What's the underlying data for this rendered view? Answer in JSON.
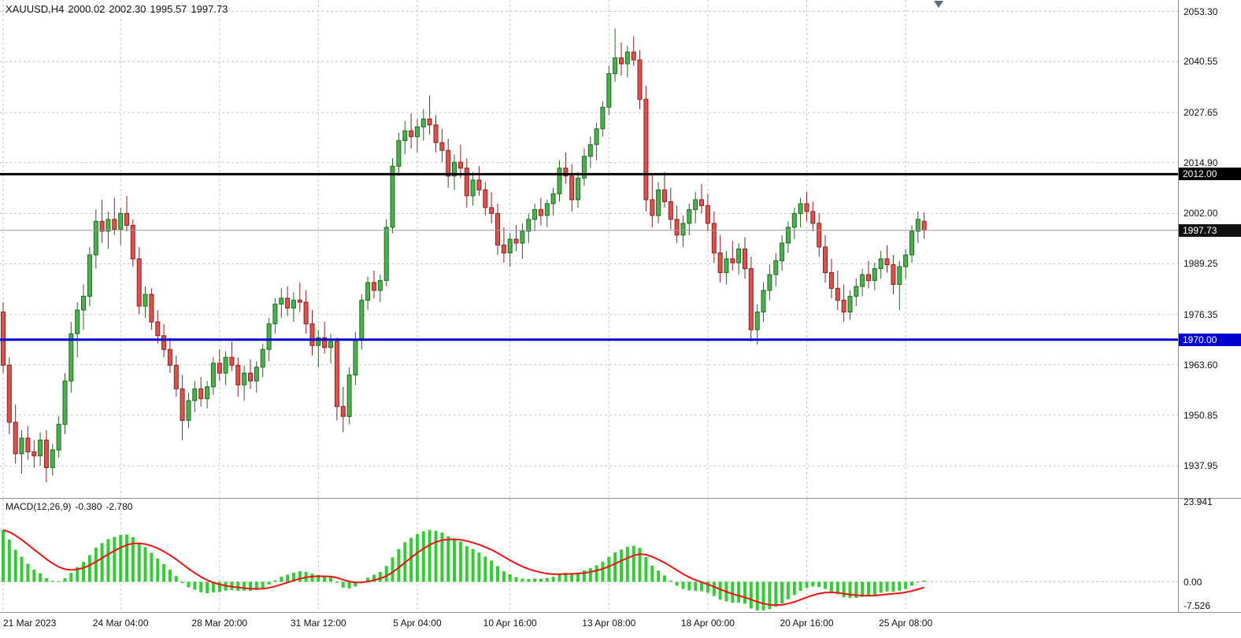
{
  "header": {
    "symbol": "XAUUSD,H4",
    "open": "2000.02",
    "high": "2002.30",
    "low": "1995.57",
    "close": "1997.73"
  },
  "colors": {
    "background": "#ffffff",
    "grid": "#c6c6c6",
    "separator": "#8c8c8c",
    "axis_text": "#111111",
    "up_body": "#4caf50",
    "up_border": "#1d6b1d",
    "down_body": "#d9534f",
    "down_border": "#8e1f1c",
    "macd_hist": "#32cd32",
    "macd_signal": "#ef1010",
    "bid_line": "#9a9a9a",
    "bid_badge_bg": "#111111",
    "badge_text": "#ffffff"
  },
  "chart_data": {
    "type": "candlestick",
    "symbol": "XAUUSD",
    "timeframe": "H4",
    "price_axis": {
      "min": 1930.0,
      "max": 2056.2,
      "ticks": [
        "2053.30",
        "2040.55",
        "2027.65",
        "2014.90",
        "2002.00",
        "1989.25",
        "1976.35",
        "1963.60",
        "1950.85",
        "1937.95"
      ]
    },
    "x_axis": {
      "labels": [
        {
          "text": "21 Mar 2023",
          "bar": 0
        },
        {
          "text": "24 Mar 04:00",
          "bar": 19
        },
        {
          "text": "28 Mar 20:00",
          "bar": 35
        },
        {
          "text": "31 Mar 12:00",
          "bar": 51
        },
        {
          "text": "5 Apr 04:00",
          "bar": 67
        },
        {
          "text": "10 Apr 16:00",
          "bar": 82
        },
        {
          "text": "13 Apr 08:00",
          "bar": 98
        },
        {
          "text": "18 Apr 00:00",
          "bar": 114
        },
        {
          "text": "20 Apr 16:00",
          "bar": 130
        },
        {
          "text": "25 Apr 08:00",
          "bar": 146
        }
      ]
    },
    "hlines": [
      {
        "name": "resistance-line",
        "price": 2012.0,
        "label": "2012.00",
        "color": "#000000",
        "width": 3
      },
      {
        "name": "support-line",
        "price": 1970.0,
        "label": "1970.00",
        "color": "#0000d2",
        "width": 3
      }
    ],
    "current_price": {
      "price": 1997.73,
      "label": "1997.73"
    },
    "candles": [
      [
        1977.0,
        1979.5,
        1961.5,
        1963.5
      ],
      [
        1963.5,
        1965.5,
        1946.0,
        1949.0
      ],
      [
        1949.0,
        1953.5,
        1938.5,
        1941.0
      ],
      [
        1941.0,
        1947.0,
        1936.0,
        1945.0
      ],
      [
        1945.0,
        1948.0,
        1939.5,
        1941.5
      ],
      [
        1941.5,
        1944.5,
        1937.5,
        1940.5
      ],
      [
        1940.5,
        1946.5,
        1938.0,
        1944.5
      ],
      [
        1944.5,
        1947.0,
        1933.8,
        1937.5
      ],
      [
        1937.5,
        1943.5,
        1935.5,
        1942.0
      ],
      [
        1942.0,
        1950.5,
        1940.0,
        1948.5
      ],
      [
        1948.5,
        1961.5,
        1946.0,
        1959.5
      ],
      [
        1959.5,
        1974.5,
        1956.5,
        1971.5
      ],
      [
        1971.5,
        1979.5,
        1965.5,
        1977.5
      ],
      [
        1977.5,
        1984.0,
        1972.5,
        1981.0
      ],
      [
        1981.0,
        1993.5,
        1978.5,
        1991.5
      ],
      [
        1991.5,
        2003.0,
        1988.0,
        2000.0
      ],
      [
        2000.0,
        2005.5,
        1994.5,
        1997.5
      ],
      [
        1997.5,
        2002.5,
        1993.0,
        2000.5
      ],
      [
        2000.5,
        2006.0,
        1996.5,
        1998.0
      ],
      [
        1998.0,
        2003.5,
        1994.0,
        2002.0
      ],
      [
        2002.0,
        2006.5,
        1997.5,
        1999.0
      ],
      [
        1999.0,
        2000.5,
        1988.5,
        1990.5
      ],
      [
        1990.5,
        1993.5,
        1976.5,
        1978.5
      ],
      [
        1978.5,
        1983.5,
        1975.5,
        1981.5
      ],
      [
        1981.5,
        1983.0,
        1972.5,
        1974.5
      ],
      [
        1974.5,
        1977.5,
        1969.0,
        1971.0
      ],
      [
        1971.0,
        1974.0,
        1965.5,
        1967.5
      ],
      [
        1967.5,
        1970.5,
        1961.5,
        1963.5
      ],
      [
        1963.5,
        1966.0,
        1955.5,
        1957.5
      ],
      [
        1957.5,
        1961.0,
        1944.5,
        1949.5
      ],
      [
        1949.5,
        1956.5,
        1947.5,
        1954.5
      ],
      [
        1954.5,
        1959.5,
        1951.5,
        1957.5
      ],
      [
        1957.5,
        1960.5,
        1953.0,
        1955.0
      ],
      [
        1955.0,
        1959.5,
        1952.5,
        1958.0
      ],
      [
        1958.0,
        1965.5,
        1956.0,
        1964.0
      ],
      [
        1964.0,
        1967.5,
        1959.5,
        1961.5
      ],
      [
        1961.5,
        1967.0,
        1958.5,
        1965.5
      ],
      [
        1965.5,
        1969.5,
        1962.0,
        1963.5
      ],
      [
        1963.5,
        1965.5,
        1955.5,
        1958.5
      ],
      [
        1958.5,
        1963.5,
        1954.5,
        1961.5
      ],
      [
        1961.5,
        1965.0,
        1957.5,
        1959.5
      ],
      [
        1959.5,
        1964.5,
        1956.5,
        1963.0
      ],
      [
        1963.0,
        1969.0,
        1960.5,
        1967.5
      ],
      [
        1967.5,
        1975.5,
        1964.5,
        1974.0
      ],
      [
        1974.0,
        1980.5,
        1971.5,
        1979.0
      ],
      [
        1979.0,
        1983.0,
        1975.5,
        1980.5
      ],
      [
        1980.5,
        1983.5,
        1976.0,
        1978.0
      ],
      [
        1978.0,
        1982.0,
        1974.5,
        1980.0
      ],
      [
        1980.0,
        1984.5,
        1977.0,
        1979.5
      ],
      [
        1979.5,
        1982.5,
        1971.5,
        1974.0
      ],
      [
        1974.0,
        1977.5,
        1966.0,
        1968.5
      ],
      [
        1968.5,
        1972.5,
        1963.0,
        1970.5
      ],
      [
        1970.5,
        1974.5,
        1966.5,
        1968.0
      ],
      [
        1968.0,
        1971.5,
        1964.0,
        1969.5
      ],
      [
        1969.5,
        1970.5,
        1949.5,
        1953.0
      ],
      [
        1953.0,
        1958.0,
        1946.5,
        1950.5
      ],
      [
        1950.5,
        1963.0,
        1948.5,
        1961.0
      ],
      [
        1961.0,
        1972.0,
        1958.5,
        1970.0
      ],
      [
        1970.0,
        1981.5,
        1967.5,
        1980.0
      ],
      [
        1980.0,
        1986.0,
        1977.5,
        1984.5
      ],
      [
        1984.5,
        1987.5,
        1980.5,
        1982.5
      ],
      [
        1982.5,
        1986.5,
        1979.5,
        1985.0
      ],
      [
        1985.0,
        2000.5,
        1983.5,
        1998.5
      ],
      [
        1998.5,
        2016.0,
        1997.0,
        2014.0
      ],
      [
        2014.0,
        2022.5,
        2011.5,
        2020.5
      ],
      [
        2020.5,
        2025.5,
        2017.0,
        2023.0
      ],
      [
        2023.0,
        2027.5,
        2018.5,
        2021.5
      ],
      [
        2021.5,
        2026.0,
        2017.5,
        2024.0
      ],
      [
        2024.0,
        2028.5,
        2020.5,
        2026.0
      ],
      [
        2026.0,
        2032.0,
        2022.0,
        2024.5
      ],
      [
        2024.5,
        2027.0,
        2017.5,
        2020.0
      ],
      [
        2020.0,
        2023.5,
        2015.0,
        2018.0
      ],
      [
        2018.0,
        2021.0,
        2008.5,
        2011.5
      ],
      [
        2011.5,
        2017.0,
        2008.0,
        2015.0
      ],
      [
        2015.0,
        2019.5,
        2011.0,
        2013.5
      ],
      [
        2013.5,
        2016.0,
        2003.5,
        2006.5
      ],
      [
        2006.5,
        2012.5,
        2004.0,
        2010.5
      ],
      [
        2010.5,
        2014.0,
        2006.5,
        2008.0
      ],
      [
        2008.0,
        2010.0,
        2001.5,
        2003.5
      ],
      [
        2003.5,
        2007.5,
        1999.5,
        2002.0
      ],
      [
        2002.0,
        2004.5,
        1991.5,
        1994.0
      ],
      [
        1994.0,
        1998.5,
        1989.5,
        1992.0
      ],
      [
        1992.0,
        1997.0,
        1988.5,
        1995.5
      ],
      [
        1995.5,
        1999.0,
        1992.5,
        1994.5
      ],
      [
        1994.5,
        1999.5,
        1990.5,
        1997.5
      ],
      [
        1997.5,
        2002.0,
        1994.5,
        2000.5
      ],
      [
        2000.5,
        2004.5,
        1997.5,
        2003.0
      ],
      [
        2003.0,
        2006.0,
        1999.0,
        2001.5
      ],
      [
        2001.5,
        2005.5,
        1998.5,
        2004.5
      ],
      [
        2004.5,
        2008.5,
        2001.5,
        2007.0
      ],
      [
        2007.0,
        2015.5,
        2005.0,
        2013.5
      ],
      [
        2013.5,
        2017.5,
        2009.5,
        2011.5
      ],
      [
        2011.5,
        2014.5,
        2002.5,
        2005.5
      ],
      [
        2005.5,
        2012.5,
        2003.5,
        2011.0
      ],
      [
        2011.0,
        2018.5,
        2009.0,
        2016.5
      ],
      [
        2016.5,
        2021.5,
        2013.5,
        2019.5
      ],
      [
        2019.5,
        2025.0,
        2015.5,
        2023.5
      ],
      [
        2023.5,
        2030.5,
        2021.5,
        2029.0
      ],
      [
        2029.0,
        2039.5,
        2027.0,
        2037.5
      ],
      [
        2037.5,
        2049.0,
        2035.5,
        2041.5
      ],
      [
        2041.5,
        2045.5,
        2037.0,
        2040.0
      ],
      [
        2040.0,
        2044.5,
        2036.5,
        2043.0
      ],
      [
        2043.0,
        2047.0,
        2039.5,
        2041.0
      ],
      [
        2041.0,
        2043.5,
        2028.5,
        2031.0
      ],
      [
        2031.0,
        2034.5,
        2002.5,
        2005.5
      ],
      [
        2005.5,
        2012.0,
        1998.5,
        2001.5
      ],
      [
        2001.5,
        2010.0,
        1999.5,
        2008.0
      ],
      [
        2008.0,
        2012.5,
        2003.5,
        2005.0
      ],
      [
        2005.0,
        2008.5,
        1998.0,
        2000.5
      ],
      [
        2000.5,
        2004.0,
        1994.5,
        1996.5
      ],
      [
        1996.5,
        2001.5,
        1993.5,
        1999.5
      ],
      [
        1999.5,
        2004.5,
        1996.5,
        2003.0
      ],
      [
        2003.0,
        2007.5,
        1999.5,
        2005.5
      ],
      [
        2005.5,
        2009.5,
        2002.0,
        2004.0
      ],
      [
        2004.0,
        2007.0,
        1997.5,
        1999.5
      ],
      [
        1999.5,
        2002.5,
        1989.5,
        1992.0
      ],
      [
        1992.0,
        1996.5,
        1984.5,
        1987.0
      ],
      [
        1987.0,
        1992.5,
        1984.0,
        1990.5
      ],
      [
        1990.5,
        1995.0,
        1987.5,
        1989.5
      ],
      [
        1989.5,
        1994.5,
        1986.5,
        1993.0
      ],
      [
        1993.0,
        1996.0,
        1985.5,
        1988.0
      ],
      [
        1988.0,
        1991.0,
        1969.5,
        1972.5
      ],
      [
        1972.5,
        1979.0,
        1968.8,
        1977.0
      ],
      [
        1977.0,
        1984.5,
        1974.5,
        1982.5
      ],
      [
        1982.5,
        1989.0,
        1980.0,
        1986.5
      ],
      [
        1986.5,
        1992.0,
        1983.5,
        1990.0
      ],
      [
        1990.0,
        1996.5,
        1987.5,
        1994.5
      ],
      [
        1994.5,
        2000.0,
        1992.0,
        1998.5
      ],
      [
        1998.5,
        2003.5,
        1995.5,
        2002.0
      ],
      [
        2002.0,
        2006.0,
        1998.5,
        2004.5
      ],
      [
        2004.5,
        2007.5,
        2000.0,
        2002.5
      ],
      [
        2002.5,
        2005.0,
        1997.5,
        1999.5
      ],
      [
        1999.5,
        2002.0,
        1991.0,
        1993.5
      ],
      [
        1993.5,
        1996.5,
        1984.5,
        1987.0
      ],
      [
        1987.0,
        1990.5,
        1980.5,
        1983.0
      ],
      [
        1983.0,
        1987.5,
        1977.5,
        1980.0
      ],
      [
        1980.0,
        1984.0,
        1974.5,
        1977.0
      ],
      [
        1977.0,
        1982.5,
        1975.0,
        1981.0
      ],
      [
        1981.0,
        1985.5,
        1978.5,
        1983.5
      ],
      [
        1983.5,
        1988.0,
        1981.0,
        1986.5
      ],
      [
        1986.5,
        1990.0,
        1983.0,
        1985.0
      ],
      [
        1985.0,
        1989.5,
        1982.5,
        1988.0
      ],
      [
        1988.0,
        1992.5,
        1985.5,
        1990.5
      ],
      [
        1990.5,
        1994.0,
        1987.0,
        1989.0
      ],
      [
        1989.0,
        1991.5,
        1981.5,
        1984.0
      ],
      [
        1984.0,
        1990.0,
        1977.5,
        1988.5
      ],
      [
        1988.5,
        1993.0,
        1985.5,
        1991.5
      ],
      [
        1991.5,
        1999.0,
        1989.5,
        1997.5
      ],
      [
        1997.5,
        2002.5,
        1994.5,
        2000.5
      ],
      [
        2000.02,
        2002.3,
        1995.57,
        1997.73
      ]
    ],
    "macd": {
      "label": "MACD(12,26,9)",
      "value_main": "-0.380",
      "value_signal": "-2.780",
      "fast": 12,
      "slow": 26,
      "signal": 9,
      "ema_seed": {
        "fast": 1971.0,
        "slow": 1954.0
      },
      "axis": {
        "min": -8.4,
        "max": 24.3,
        "ticks": [
          "23.941",
          "0.00",
          "-7.526"
        ]
      }
    }
  }
}
